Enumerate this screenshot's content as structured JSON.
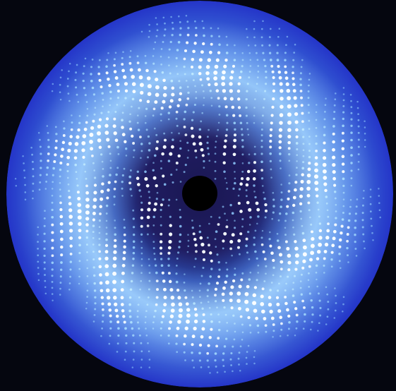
{
  "image": {
    "subject": "x-ray-diffraction-pattern",
    "palette": {
      "background": "#05060f",
      "disk_outer": "#2434c8",
      "disk_mid": "#4a78e6",
      "ring_glow": "#a8d6ff",
      "inner_dark": "#1a1752",
      "center_hole": "#000000",
      "spot_bright": "#f2fbff",
      "spot_soft": "#7fc4ff"
    },
    "symmetry": "ten-fold"
  }
}
